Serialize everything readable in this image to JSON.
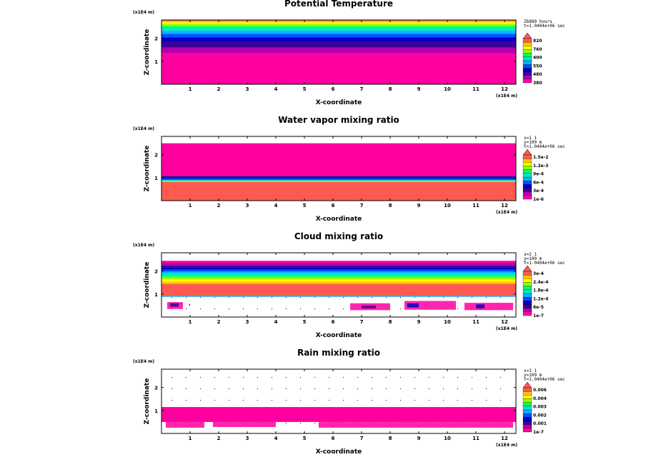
{
  "figure": {
    "description_free": true
  },
  "chart_data": [
    {
      "type": "heatmap",
      "title": "Potential Temperature",
      "xlabel": "X-coordinate",
      "ylabel": "Z-coordinate",
      "x_units": "(x1E4 m)",
      "z_units": "(x1E4 m)",
      "xlim": [
        0,
        12.4
      ],
      "ylim": [
        0,
        2.8
      ],
      "xticks": [
        "1",
        "2",
        "3",
        "4",
        "5",
        "6",
        "7",
        "8",
        "9",
        "10",
        "11",
        "12"
      ],
      "yticks": [
        "1",
        "2"
      ],
      "meta": [
        "Z6880 hours",
        "t=1.0404e+06 sec"
      ],
      "legend_labels": [
        "820",
        "760",
        "400",
        "550",
        "480",
        "380"
      ],
      "layers": [
        {
          "z0": 0.0,
          "z1": 1.35,
          "color": "#ff00a0"
        },
        {
          "z0": 1.35,
          "z1": 1.6,
          "color": "#b000b0"
        },
        {
          "z0": 1.6,
          "z1": 1.85,
          "color": "#3c0096"
        },
        {
          "z0": 1.85,
          "z1": 2.05,
          "color": "#0000c8"
        },
        {
          "z0": 2.05,
          "z1": 2.2,
          "color": "#0050ff"
        },
        {
          "z0": 2.2,
          "z1": 2.33,
          "color": "#00b4ff"
        },
        {
          "z0": 2.33,
          "z1": 2.44,
          "color": "#00e6c8"
        },
        {
          "z0": 2.44,
          "z1": 2.54,
          "color": "#00ff64"
        },
        {
          "z0": 2.54,
          "z1": 2.63,
          "color": "#96ff00"
        },
        {
          "z0": 2.63,
          "z1": 2.7,
          "color": "#ffff00"
        },
        {
          "z0": 2.7,
          "z1": 2.76,
          "color": "#ffc800"
        },
        {
          "z0": 2.76,
          "z1": 2.8,
          "color": "#ff5a50"
        }
      ],
      "patches": []
    },
    {
      "type": "heatmap",
      "title": "Water vapor mixing ratio",
      "xlabel": "X-coordinate",
      "ylabel": "Z-coordinate",
      "x_units": "(x1E4 m)",
      "z_units": "(x1E4 m)",
      "xlim": [
        0,
        12.4
      ],
      "ylim": [
        0,
        2.8
      ],
      "xticks": [
        "1",
        "2",
        "3",
        "4",
        "5",
        "6",
        "7",
        "8",
        "9",
        "10",
        "11",
        "12"
      ],
      "yticks": [
        "1",
        "2"
      ],
      "meta": [
        "s=1 1",
        "y=100 m",
        "t=1.0404e+06 sec"
      ],
      "legend_labels": [
        "1.5e-2",
        "1.2e-3",
        "9e-4",
        "6e-4",
        "3e-4",
        "1e-6"
      ],
      "layers": [
        {
          "z0": 0.0,
          "z1": 0.82,
          "color": "#ff5a50"
        },
        {
          "z0": 0.82,
          "z1": 0.86,
          "color": "#96ff00"
        },
        {
          "z0": 0.86,
          "z1": 0.9,
          "color": "#00e6c8"
        },
        {
          "z0": 0.9,
          "z1": 0.96,
          "color": "#0050ff"
        },
        {
          "z0": 0.96,
          "z1": 1.02,
          "color": "#0000c8"
        },
        {
          "z0": 1.02,
          "z1": 1.08,
          "color": "#3c0096"
        },
        {
          "z0": 1.08,
          "z1": 2.5,
          "color": "#ff00a0"
        }
      ],
      "patches": []
    },
    {
      "type": "heatmap",
      "title": "Cloud mixing ratio",
      "xlabel": "X-coordinate",
      "ylabel": "Z-coordinate",
      "x_units": "(x1E4 m)",
      "z_units": "(x1E4 m)",
      "xlim": [
        0,
        12.4
      ],
      "ylim": [
        0,
        2.8
      ],
      "xticks": [
        "1",
        "2",
        "3",
        "4",
        "5",
        "6",
        "7",
        "8",
        "9",
        "10",
        "11",
        "12"
      ],
      "yticks": [
        "1",
        "2"
      ],
      "meta": [
        "s=2 1",
        "y=100 m",
        "t=1.0404e+06 sec"
      ],
      "legend_labels": [
        "3e-4",
        "2.4e-4",
        "1.8e-4",
        "1.2e-4",
        "6e-5",
        "1e-7"
      ],
      "layers": [
        {
          "z0": 0.88,
          "z1": 0.92,
          "color": "#00b4ff"
        },
        {
          "z0": 0.92,
          "z1": 1.45,
          "color": "#ff5a50"
        },
        {
          "z0": 1.45,
          "z1": 1.55,
          "color": "#ffc800"
        },
        {
          "z0": 1.55,
          "z1": 1.65,
          "color": "#ffff00"
        },
        {
          "z0": 1.65,
          "z1": 1.75,
          "color": "#96ff00"
        },
        {
          "z0": 1.75,
          "z1": 1.83,
          "color": "#00ff64"
        },
        {
          "z0": 1.83,
          "z1": 1.91,
          "color": "#00e6c8"
        },
        {
          "z0": 1.91,
          "z1": 1.99,
          "color": "#00b4ff"
        },
        {
          "z0": 1.99,
          "z1": 2.07,
          "color": "#0050ff"
        },
        {
          "z0": 2.07,
          "z1": 2.16,
          "color": "#0000c8"
        },
        {
          "z0": 2.16,
          "z1": 2.25,
          "color": "#3c0096"
        },
        {
          "z0": 2.25,
          "z1": 2.35,
          "color": "#b000b0"
        },
        {
          "z0": 2.35,
          "z1": 2.45,
          "color": "#ff00a0"
        }
      ],
      "patches": [
        {
          "x0": 0.2,
          "x1": 0.75,
          "z0": 0.35,
          "z1": 0.65,
          "color": "#ff00a0"
        },
        {
          "x0": 0.3,
          "x1": 0.6,
          "z0": 0.45,
          "z1": 0.6,
          "color": "#3c0096"
        },
        {
          "x0": 0.95,
          "x1": 1.0,
          "z0": 0.5,
          "z1": 0.58,
          "color": "#ff00a0"
        },
        {
          "x0": 6.6,
          "x1": 8.0,
          "z0": 0.3,
          "z1": 0.6,
          "color": "#ff00a0"
        },
        {
          "x0": 7.0,
          "x1": 7.5,
          "z0": 0.38,
          "z1": 0.5,
          "color": "#3c0096"
        },
        {
          "x0": 8.5,
          "x1": 10.3,
          "z0": 0.32,
          "z1": 0.7,
          "color": "#ff00a0"
        },
        {
          "x0": 8.6,
          "x1": 9.0,
          "z0": 0.42,
          "z1": 0.6,
          "color": "#0000c8"
        },
        {
          "x0": 10.6,
          "x1": 12.3,
          "z0": 0.3,
          "z1": 0.62,
          "color": "#ff00a0"
        },
        {
          "x0": 11.0,
          "x1": 11.3,
          "z0": 0.38,
          "z1": 0.55,
          "color": "#0000c8"
        }
      ]
    },
    {
      "type": "heatmap",
      "title": "Rain mixing ratio",
      "xlabel": "X-coordinate",
      "ylabel": "Z-coordinate",
      "x_units": "(x1E4 m)",
      "z_units": "(x1E4 m)",
      "xlim": [
        0,
        12.4
      ],
      "ylim": [
        0,
        2.8
      ],
      "xticks": [
        "1",
        "2",
        "3",
        "4",
        "5",
        "6",
        "7",
        "8",
        "9",
        "10",
        "11",
        "12"
      ],
      "yticks": [
        "1",
        "2"
      ],
      "meta": [
        "s=3 1",
        "y=100 m",
        "t=1.0404e+06 sec"
      ],
      "legend_labels": [
        "0.006",
        "0.004",
        "0.003",
        "0.002",
        "0.001",
        "1e-7"
      ],
      "layers": [
        {
          "z0": 0.5,
          "z1": 1.15,
          "color": "#ff00a0"
        }
      ],
      "patches": [
        {
          "x0": 0.15,
          "x1": 1.5,
          "z0": 0.25,
          "z1": 0.5,
          "color": "#ff00a0"
        },
        {
          "x0": 1.8,
          "x1": 4.0,
          "z0": 0.28,
          "z1": 0.5,
          "color": "#ff00a0"
        },
        {
          "x0": 5.5,
          "x1": 12.3,
          "z0": 0.25,
          "z1": 0.5,
          "color": "#ff00a0"
        }
      ]
    }
  ],
  "palette": [
    "#ff00a0",
    "#b000b0",
    "#3c0096",
    "#0000c8",
    "#0050ff",
    "#00b4ff",
    "#00e6c8",
    "#00ff64",
    "#96ff00",
    "#ffff00",
    "#ffc800",
    "#ff5a50"
  ]
}
